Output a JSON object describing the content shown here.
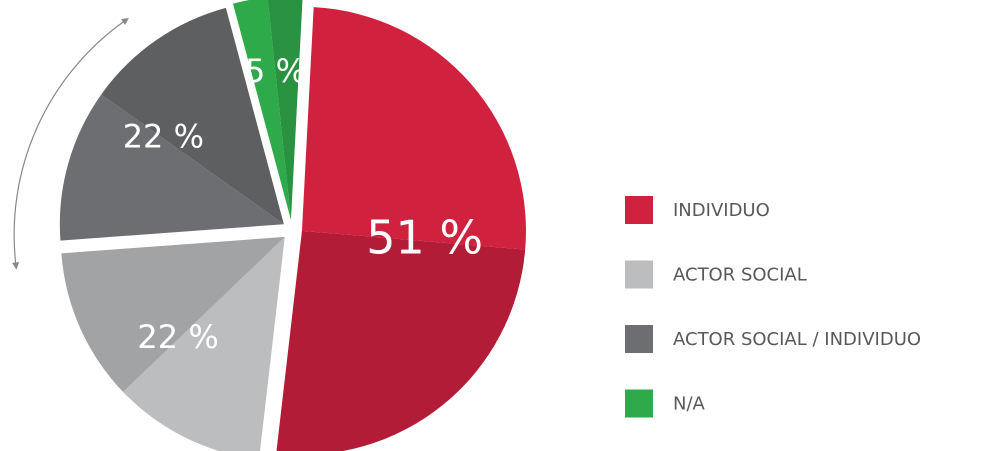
{
  "chart_data": {
    "type": "pie",
    "categories": [
      "INDIVIDUO",
      "ACTOR SOCIAL",
      "ACTOR SOCIAL / INDIVIDUO",
      "N/A"
    ],
    "values": [
      51,
      22,
      22,
      5
    ],
    "value_labels": [
      "51 %",
      "22 %",
      "22 %",
      "5 %"
    ],
    "colors": [
      "#d0213f",
      "#bcbdbf",
      "#6d6e71",
      "#2eaa4a"
    ],
    "legend": "right"
  }
}
